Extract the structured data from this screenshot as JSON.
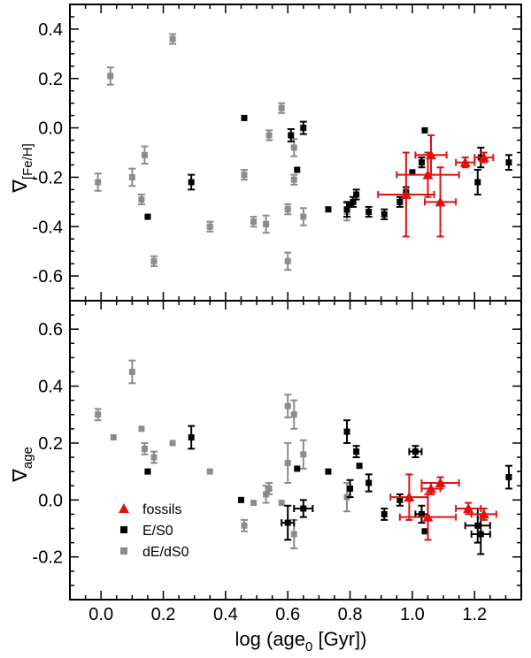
{
  "chart_data": {
    "type": "scatter",
    "xlabel": "log (age",
    "xlabel_sub": "0",
    "xlabel_tail": " [Gyr])",
    "xlim": [
      -0.1,
      1.35
    ],
    "xticks": [
      "0.0",
      "0.2",
      "0.4",
      "0.6",
      "0.8",
      "1.0",
      "1.2"
    ],
    "xtick_values": [
      0.0,
      0.2,
      0.4,
      0.6,
      0.8,
      1.0,
      1.2
    ],
    "colors": {
      "fossils": "#e01010",
      "E/S0": "#000000",
      "dE/dS0": "#8c8c8c"
    },
    "legend": {
      "placement": "bottom-left of lower panel",
      "entries": [
        {
          "label": "fossils",
          "marker": "triangle",
          "color": "#e01010"
        },
        {
          "label": "E/S0",
          "marker": "square",
          "color": "#000000"
        },
        {
          "label": "dE/dS0",
          "marker": "square",
          "color": "#8c8c8c"
        }
      ]
    },
    "panels": [
      {
        "name": "top",
        "ylabel_symbol": "∇",
        "ylabel_sub": "[Fe/H]",
        "ylim": [
          -0.7,
          0.5
        ],
        "yticks": [
          "0.4",
          "0.2",
          "0.0",
          "-0.2",
          "-0.4",
          "-0.6"
        ],
        "ytick_values": [
          0.4,
          0.2,
          0.0,
          -0.2,
          -0.4,
          -0.6
        ],
        "series": [
          {
            "name": "dE/dS0",
            "marker": "square",
            "color": "#8c8c8c",
            "points": [
              {
                "x": -0.01,
                "y": -0.22,
                "yerr": 0.035
              },
              {
                "x": 0.03,
                "y": 0.21,
                "yerr": 0.035
              },
              {
                "x": 0.1,
                "y": -0.2,
                "yerr": 0.035
              },
              {
                "x": 0.13,
                "y": -0.29,
                "yerr": 0.02
              },
              {
                "x": 0.14,
                "y": -0.11,
                "yerr": 0.035
              },
              {
                "x": 0.17,
                "y": -0.54,
                "yerr": 0.02
              },
              {
                "x": 0.23,
                "y": 0.36,
                "yerr": 0.02
              },
              {
                "x": 0.35,
                "y": -0.4,
                "yerr": 0.02
              },
              {
                "x": 0.46,
                "y": -0.19,
                "yerr": 0.02
              },
              {
                "x": 0.49,
                "y": -0.38,
                "yerr": 0.02
              },
              {
                "x": 0.53,
                "y": -0.39,
                "yerr": 0.035
              },
              {
                "x": 0.54,
                "y": -0.03,
                "yerr": 0.02
              },
              {
                "x": 0.58,
                "y": 0.08,
                "yerr": 0.02
              },
              {
                "x": 0.6,
                "y": -0.33,
                "yerr": 0.02
              },
              {
                "x": 0.6,
                "y": -0.54,
                "yerr": 0.035
              },
              {
                "x": 0.62,
                "y": -0.08,
                "yerr": 0.035
              },
              {
                "x": 0.62,
                "y": -0.21,
                "yerr": 0.02
              },
              {
                "x": 0.65,
                "y": -0.36,
                "yerr": 0.035
              },
              {
                "x": 0.79,
                "y": -0.34,
                "yerr": 0.035
              }
            ]
          },
          {
            "name": "E/S0",
            "marker": "square",
            "color": "#000000",
            "points": [
              {
                "x": 0.15,
                "y": -0.36
              },
              {
                "x": 0.29,
                "y": -0.22,
                "yerr": 0.03
              },
              {
                "x": 0.46,
                "y": 0.04
              },
              {
                "x": 0.61,
                "y": -0.03,
                "yerr": 0.025
              },
              {
                "x": 0.63,
                "y": -0.17
              },
              {
                "x": 0.65,
                "y": 0.0,
                "yerr": 0.025
              },
              {
                "x": 0.73,
                "y": -0.33
              },
              {
                "x": 0.79,
                "y": -0.33,
                "yerr": 0.03
              },
              {
                "x": 0.8,
                "y": -0.31
              },
              {
                "x": 0.81,
                "y": -0.3,
                "yerr": 0.02
              },
              {
                "x": 0.82,
                "y": -0.27,
                "yerr": 0.02
              },
              {
                "x": 0.86,
                "y": -0.34,
                "yerr": 0.02
              },
              {
                "x": 0.91,
                "y": -0.35,
                "yerr": 0.02
              },
              {
                "x": 0.96,
                "y": -0.3,
                "yerr": 0.02
              },
              {
                "x": 0.98,
                "y": -0.26,
                "yerr": 0.02
              },
              {
                "x": 1.0,
                "y": -0.18
              },
              {
                "x": 1.03,
                "y": -0.14,
                "yerr": 0.02
              },
              {
                "x": 1.04,
                "y": -0.01
              },
              {
                "x": 1.21,
                "y": -0.22,
                "yerr": 0.05
              },
              {
                "x": 1.22,
                "y": -0.12,
                "yerr": 0.04
              },
              {
                "x": 1.31,
                "y": -0.14,
                "yerr": 0.03
              }
            ]
          },
          {
            "name": "fossils",
            "marker": "triangle",
            "color": "#e01010",
            "points": [
              {
                "x": 0.98,
                "y": -0.27,
                "xerr": 0.09,
                "yerr": 0.17
              },
              {
                "x": 1.05,
                "y": -0.19,
                "xerr": 0.1,
                "yerr": 0.09
              },
              {
                "x": 1.06,
                "y": -0.11,
                "xerr": 0.05,
                "yerr": 0.08
              },
              {
                "x": 1.09,
                "y": -0.3,
                "xerr": 0.05,
                "yerr": 0.14
              },
              {
                "x": 1.17,
                "y": -0.14,
                "xerr": 0.03,
                "yerr": 0.02
              },
              {
                "x": 1.23,
                "y": -0.12,
                "xerr": 0.03,
                "yerr": 0.02
              }
            ]
          }
        ]
      },
      {
        "name": "bottom",
        "ylabel_symbol": "∇",
        "ylabel_sub": "age",
        "ylim": [
          -0.35,
          0.7
        ],
        "yticks": [
          "0.6",
          "0.4",
          "0.2",
          "0.0",
          "-0.2"
        ],
        "ytick_values": [
          0.6,
          0.4,
          0.2,
          0.0,
          -0.2
        ],
        "series": [
          {
            "name": "dE/dS0",
            "marker": "square",
            "color": "#8c8c8c",
            "points": [
              {
                "x": -0.01,
                "y": 0.3,
                "yerr": 0.02
              },
              {
                "x": 0.04,
                "y": 0.22
              },
              {
                "x": 0.1,
                "y": 0.45,
                "yerr": 0.04
              },
              {
                "x": 0.13,
                "y": 0.25
              },
              {
                "x": 0.14,
                "y": 0.18,
                "yerr": 0.02
              },
              {
                "x": 0.17,
                "y": 0.15,
                "yerr": 0.02
              },
              {
                "x": 0.23,
                "y": 0.2
              },
              {
                "x": 0.35,
                "y": 0.1
              },
              {
                "x": 0.46,
                "y": -0.09,
                "yerr": 0.02
              },
              {
                "x": 0.49,
                "y": -0.01
              },
              {
                "x": 0.53,
                "y": 0.02,
                "yerr": 0.03
              },
              {
                "x": 0.54,
                "y": 0.04,
                "yerr": 0.02
              },
              {
                "x": 0.58,
                "y": -0.01
              },
              {
                "x": 0.6,
                "y": 0.33,
                "yerr": 0.04
              },
              {
                "x": 0.6,
                "y": 0.13,
                "yerr": 0.07
              },
              {
                "x": 0.62,
                "y": 0.3,
                "yerr": 0.05
              },
              {
                "x": 0.62,
                "y": -0.12,
                "yerr": 0.05
              },
              {
                "x": 0.65,
                "y": 0.16,
                "yerr": 0.05
              },
              {
                "x": 0.79,
                "y": 0.01,
                "yerr": 0.05
              }
            ]
          },
          {
            "name": "E/S0",
            "marker": "square",
            "color": "#000000",
            "points": [
              {
                "x": 0.15,
                "y": 0.1
              },
              {
                "x": 0.29,
                "y": 0.22,
                "yerr": 0.04
              },
              {
                "x": 0.45,
                "y": 0.0
              },
              {
                "x": 0.6,
                "y": -0.08,
                "xerr": 0.02,
                "yerr": 0.06
              },
              {
                "x": 0.63,
                "y": 0.11
              },
              {
                "x": 0.65,
                "y": -0.03,
                "xerr": 0.03,
                "yerr": 0.03
              },
              {
                "x": 0.73,
                "y": 0.1
              },
              {
                "x": 0.79,
                "y": 0.24,
                "yerr": 0.04
              },
              {
                "x": 0.8,
                "y": 0.04,
                "yerr": 0.03
              },
              {
                "x": 0.82,
                "y": 0.17,
                "yerr": 0.02
              },
              {
                "x": 0.83,
                "y": 0.12
              },
              {
                "x": 0.86,
                "y": 0.06,
                "yerr": 0.03
              },
              {
                "x": 0.91,
                "y": -0.05,
                "yerr": 0.02
              },
              {
                "x": 0.96,
                "y": 0.0,
                "yerr": 0.02
              },
              {
                "x": 1.01,
                "y": 0.17,
                "xerr": 0.02,
                "yerr": 0.02
              },
              {
                "x": 1.03,
                "y": -0.05,
                "xerr": 0.02,
                "yerr": 0.03
              },
              {
                "x": 1.04,
                "y": -0.11
              },
              {
                "x": 1.21,
                "y": -0.09,
                "xerr": 0.04,
                "yerr": 0.06
              },
              {
                "x": 1.22,
                "y": -0.12,
                "xerr": 0.03,
                "yerr": 0.07
              },
              {
                "x": 1.31,
                "y": 0.08,
                "yerr": 0.04
              }
            ]
          },
          {
            "name": "fossils",
            "marker": "triangle",
            "color": "#e01010",
            "points": [
              {
                "x": 0.99,
                "y": 0.01,
                "xerr": 0.06,
                "yerr": 0.08
              },
              {
                "x": 1.05,
                "y": -0.06,
                "xerr": 0.09,
                "yerr": 0.08
              },
              {
                "x": 1.06,
                "y": 0.04,
                "xerr": 0.03,
                "yerr": 0.02
              },
              {
                "x": 1.09,
                "y": 0.06,
                "xerr": 0.06,
                "yerr": 0.02
              },
              {
                "x": 1.18,
                "y": -0.03,
                "xerr": 0.04,
                "yerr": 0.02
              },
              {
                "x": 1.23,
                "y": -0.05,
                "xerr": 0.04,
                "yerr": 0.02
              }
            ]
          }
        ]
      }
    ]
  }
}
